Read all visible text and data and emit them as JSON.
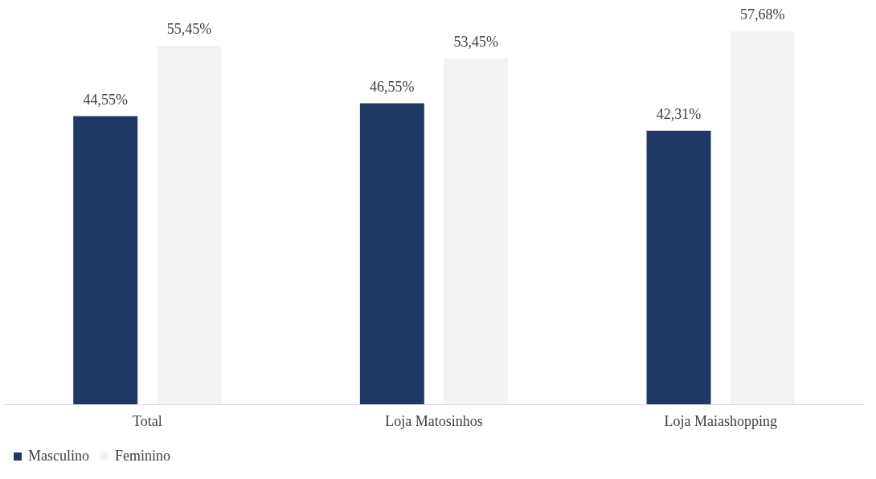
{
  "chart_data": {
    "type": "bar",
    "categories": [
      "Total",
      "Loja Matosinhos",
      "Loja Maiashopping"
    ],
    "series": [
      {
        "name": "Masculino",
        "color": "#1f3864",
        "values": [
          44.55,
          46.55,
          42.31
        ],
        "value_labels": [
          "44,55%",
          "46,55%",
          "42,31%"
        ]
      },
      {
        "name": "Feminino",
        "color": "#f2f2f2",
        "values": [
          55.45,
          53.45,
          57.68
        ],
        "value_labels": [
          "55,45%",
          "53,45%",
          "57,68%"
        ]
      }
    ],
    "legend": "bottom",
    "grid": false
  }
}
